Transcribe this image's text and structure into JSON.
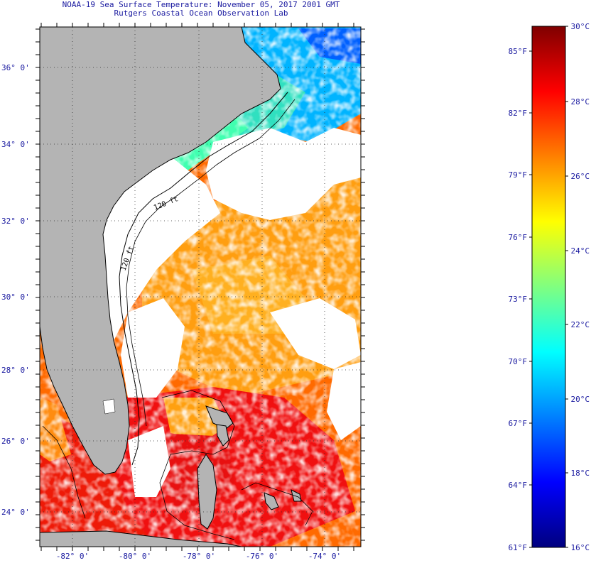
{
  "header": {
    "title_line1": "NOAA-19 Sea Surface Temperature:  November 05, 2017 2001 GMT",
    "title_line2": "Rutgers Coastal Ocean Observation Lab"
  },
  "map": {
    "lon_labels": [
      "-82° 0'",
      "-80° 0'",
      "-78° 0'",
      "-76° 0'",
      "-74° 0'"
    ],
    "lat_labels": [
      "36° 0'",
      "34° 0'",
      "32° 0'",
      "30° 0'",
      "28° 0'",
      "26° 0'",
      "24° 0'"
    ],
    "contour_labels": [
      "120 ft",
      "120 ft"
    ],
    "land_color": "#b4b4b4",
    "cloud_color": "#ffffff"
  },
  "colorbar": {
    "fahrenheit_ticks": [
      "85°F",
      "82°F",
      "79°F",
      "76°F",
      "73°F",
      "70°F",
      "67°F",
      "64°F"
    ],
    "fahrenheit_min": "61°F",
    "celsius_ticks": [
      "28°C",
      "26°C",
      "24°C",
      "22°C",
      "20°C",
      "18°C"
    ],
    "celsius_max": "30°C",
    "celsius_min": "16°C",
    "colors": [
      "#00007f",
      "#0000ff",
      "#0080ff",
      "#00ffff",
      "#80ff80",
      "#ffff00",
      "#ff8000",
      "#ff0000",
      "#7f0000"
    ]
  }
}
